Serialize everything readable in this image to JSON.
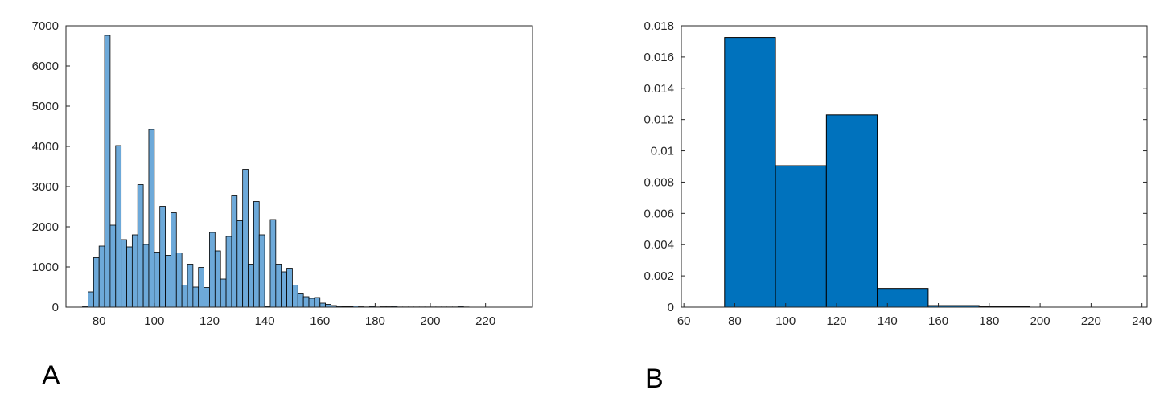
{
  "panels": {
    "a_label": "A",
    "b_label": "B"
  },
  "colors": {
    "histogram_fill": "#6DA9D9",
    "bar_fill": "#0072BD",
    "edge": "#000000",
    "axis": "#262626"
  },
  "chart_data": [
    {
      "type": "bar",
      "subtype": "histogram",
      "title": "",
      "xlabel": "",
      "ylabel": "",
      "xlim": [
        68,
        237
      ],
      "ylim": [
        0,
        7000
      ],
      "bin_width": 2,
      "xticks": [
        80,
        100,
        120,
        140,
        160,
        180,
        200,
        220
      ],
      "yticks": [
        0,
        1000,
        2000,
        3000,
        4000,
        5000,
        6000,
        7000
      ],
      "grid": false,
      "bin_starts": [
        74,
        76,
        78,
        80,
        82,
        84,
        86,
        88,
        90,
        92,
        94,
        96,
        98,
        100,
        102,
        104,
        106,
        108,
        110,
        112,
        114,
        116,
        118,
        120,
        122,
        124,
        126,
        128,
        130,
        132,
        134,
        136,
        138,
        140,
        142,
        144,
        146,
        148,
        150,
        152,
        154,
        156,
        158,
        160,
        162,
        164,
        166,
        168,
        170,
        172,
        174,
        176,
        178,
        180,
        182,
        184,
        186,
        188,
        190,
        192,
        194,
        196,
        198,
        200,
        202,
        204,
        206,
        208,
        210,
        212
      ],
      "counts": [
        20,
        380,
        1230,
        1520,
        6760,
        2040,
        4020,
        1680,
        1500,
        1800,
        3050,
        1560,
        4420,
        1370,
        2510,
        1290,
        2350,
        1350,
        550,
        1070,
        500,
        990,
        490,
        1860,
        1400,
        700,
        1760,
        2770,
        2150,
        3430,
        1070,
        2630,
        1800,
        20,
        2180,
        1070,
        880,
        970,
        550,
        350,
        260,
        220,
        240,
        100,
        70,
        40,
        20,
        15,
        15,
        30,
        10,
        5,
        20,
        5,
        10,
        10,
        20,
        5,
        5,
        5,
        5,
        5,
        5,
        5,
        5,
        5,
        5,
        5,
        20,
        5
      ]
    },
    {
      "type": "bar",
      "title": "",
      "xlabel": "",
      "ylabel": "",
      "xlim": [
        59,
        242
      ],
      "ylim": [
        0,
        0.018
      ],
      "bar_width": 20,
      "xticks": [
        60,
        80,
        100,
        120,
        140,
        160,
        180,
        200,
        220,
        240
      ],
      "yticks": [
        "0",
        "0.002",
        "0.004",
        "0.006",
        "0.008",
        "0.01",
        "0.012",
        "0.014",
        "0.016",
        "0.018"
      ],
      "grid": false,
      "categories": [
        86,
        106,
        126,
        146,
        166,
        186
      ],
      "values": [
        0.01725,
        0.00905,
        0.0123,
        0.0012,
        0.0001,
        5e-05
      ]
    }
  ]
}
